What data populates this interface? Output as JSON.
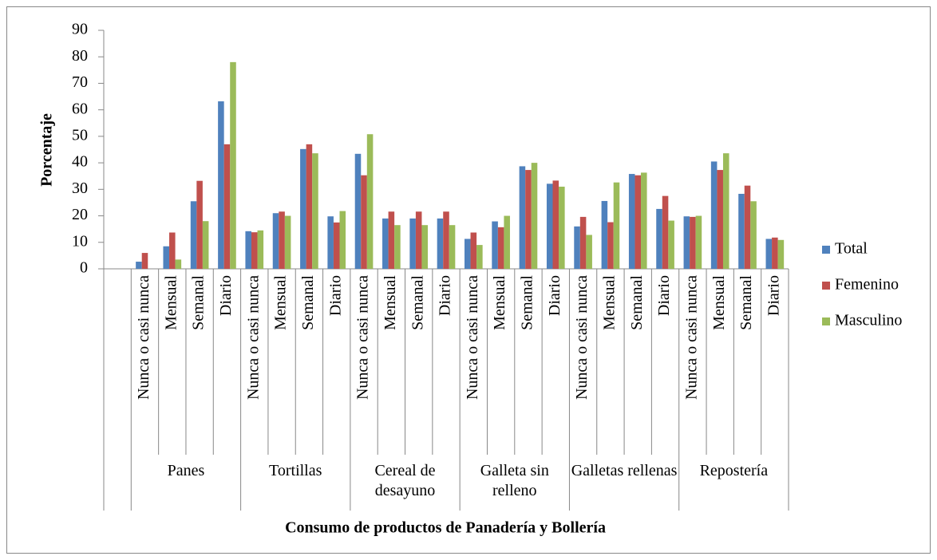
{
  "chart_data": {
    "type": "bar",
    "x_label": "Consumo de productos de Panadería y Bollería",
    "y_label": "Porcentaje",
    "groups": [
      {
        "name": null,
        "categories": [
          null
        ]
      },
      {
        "name": "Panes",
        "categories": [
          "Nunca o casi nunca",
          "Mensual",
          "Semanal",
          "Diario"
        ]
      },
      {
        "name": "Tortillas",
        "categories": [
          "Nunca o casi nunca",
          "Mensual",
          "Semanal",
          "Diario"
        ]
      },
      {
        "name": "Cereal de desayuno",
        "categories": [
          "Nunca o casi nunca",
          "Mensual",
          "Semanal",
          "Diario"
        ]
      },
      {
        "name": "Galleta sin relleno",
        "categories": [
          "Nunca o casi nunca",
          "Mensual",
          "Semanal",
          "Diario"
        ]
      },
      {
        "name": "Galletas rellenas",
        "categories": [
          "Nunca o casi nunca",
          "Mensual",
          "Semanal",
          "Diario"
        ]
      },
      {
        "name": "Repostería",
        "categories": [
          "Nunca o casi nunca",
          "Mensual",
          "Semanal",
          "Diario"
        ]
      }
    ],
    "series": [
      {
        "name": "Total",
        "color": "#4f81bd",
        "values": [
          null,
          2.7,
          8.5,
          25.5,
          63.2,
          14.2,
          21,
          45.2,
          19.8,
          43.4,
          19,
          19,
          19,
          11.3,
          17.9,
          38.7,
          32.1,
          16,
          25.6,
          35.8,
          22.6,
          19.8,
          40.5,
          28.3,
          11.3
        ]
      },
      {
        "name": "Femenino",
        "color": "#c0504d",
        "values": [
          null,
          6,
          13.7,
          33.2,
          47,
          13.8,
          21.6,
          47,
          17.5,
          35.3,
          21.6,
          21.6,
          21.6,
          13.7,
          15.7,
          37.3,
          33.3,
          19.6,
          17.6,
          35.3,
          27.5,
          19.6,
          37.3,
          31.4,
          11.8
        ]
      },
      {
        "name": "Masculino",
        "color": "#9bbb59",
        "values": [
          null,
          0,
          3.5,
          18,
          78,
          14.5,
          20,
          43.6,
          21.8,
          50.8,
          16.5,
          16.5,
          16.5,
          9,
          20,
          40,
          31,
          12.8,
          32.6,
          36.3,
          18.2,
          20,
          43.6,
          25.5,
          10.9
        ]
      }
    ],
    "ylim": [
      0,
      90
    ],
    "yticks": [
      0,
      10,
      20,
      30,
      40,
      50,
      60,
      70,
      80,
      90
    ],
    "legend": "right"
  }
}
